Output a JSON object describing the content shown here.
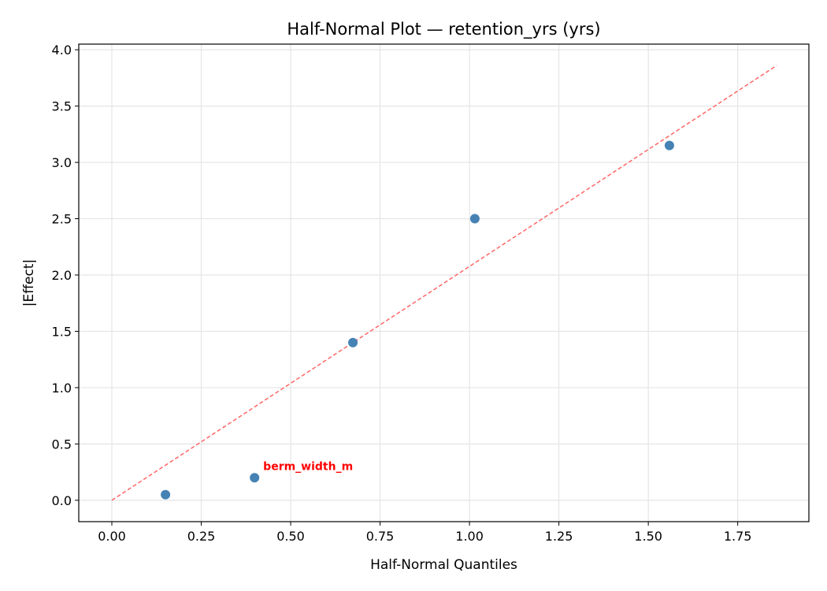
{
  "chart_data": {
    "type": "scatter",
    "title": "Half-Normal Plot — retention_yrs (yrs)",
    "xlabel": "Half-Normal Quantiles",
    "ylabel": "|Effect|",
    "xlim": [
      -0.0925,
      1.949
    ],
    "ylim": [
      -0.19,
      4.05
    ],
    "xticks": [
      "0.00",
      "0.25",
      "0.50",
      "0.75",
      "1.00",
      "1.25",
      "1.50",
      "1.75"
    ],
    "yticks": [
      "0.0",
      "0.5",
      "1.0",
      "1.5",
      "2.0",
      "2.5",
      "3.0",
      "3.5",
      "4.0"
    ],
    "grid": true,
    "points": [
      {
        "x": 0.15,
        "y": 0.05
      },
      {
        "x": 0.399,
        "y": 0.2
      },
      {
        "x": 0.674,
        "y": 1.4
      },
      {
        "x": 1.015,
        "y": 2.5
      },
      {
        "x": 1.559,
        "y": 3.15
      }
    ],
    "reference_line": {
      "x": [
        0,
        1.859
      ],
      "y": [
        0,
        3.86
      ],
      "style": "dashed"
    },
    "annotations": [
      {
        "text": "berm_width_m",
        "x": 0.399,
        "y": 0.2
      }
    ],
    "colors": {
      "points": "#4682b4",
      "line": "#ff6666",
      "annotation": "#ff0000",
      "grid": "#e5e5e5"
    }
  }
}
